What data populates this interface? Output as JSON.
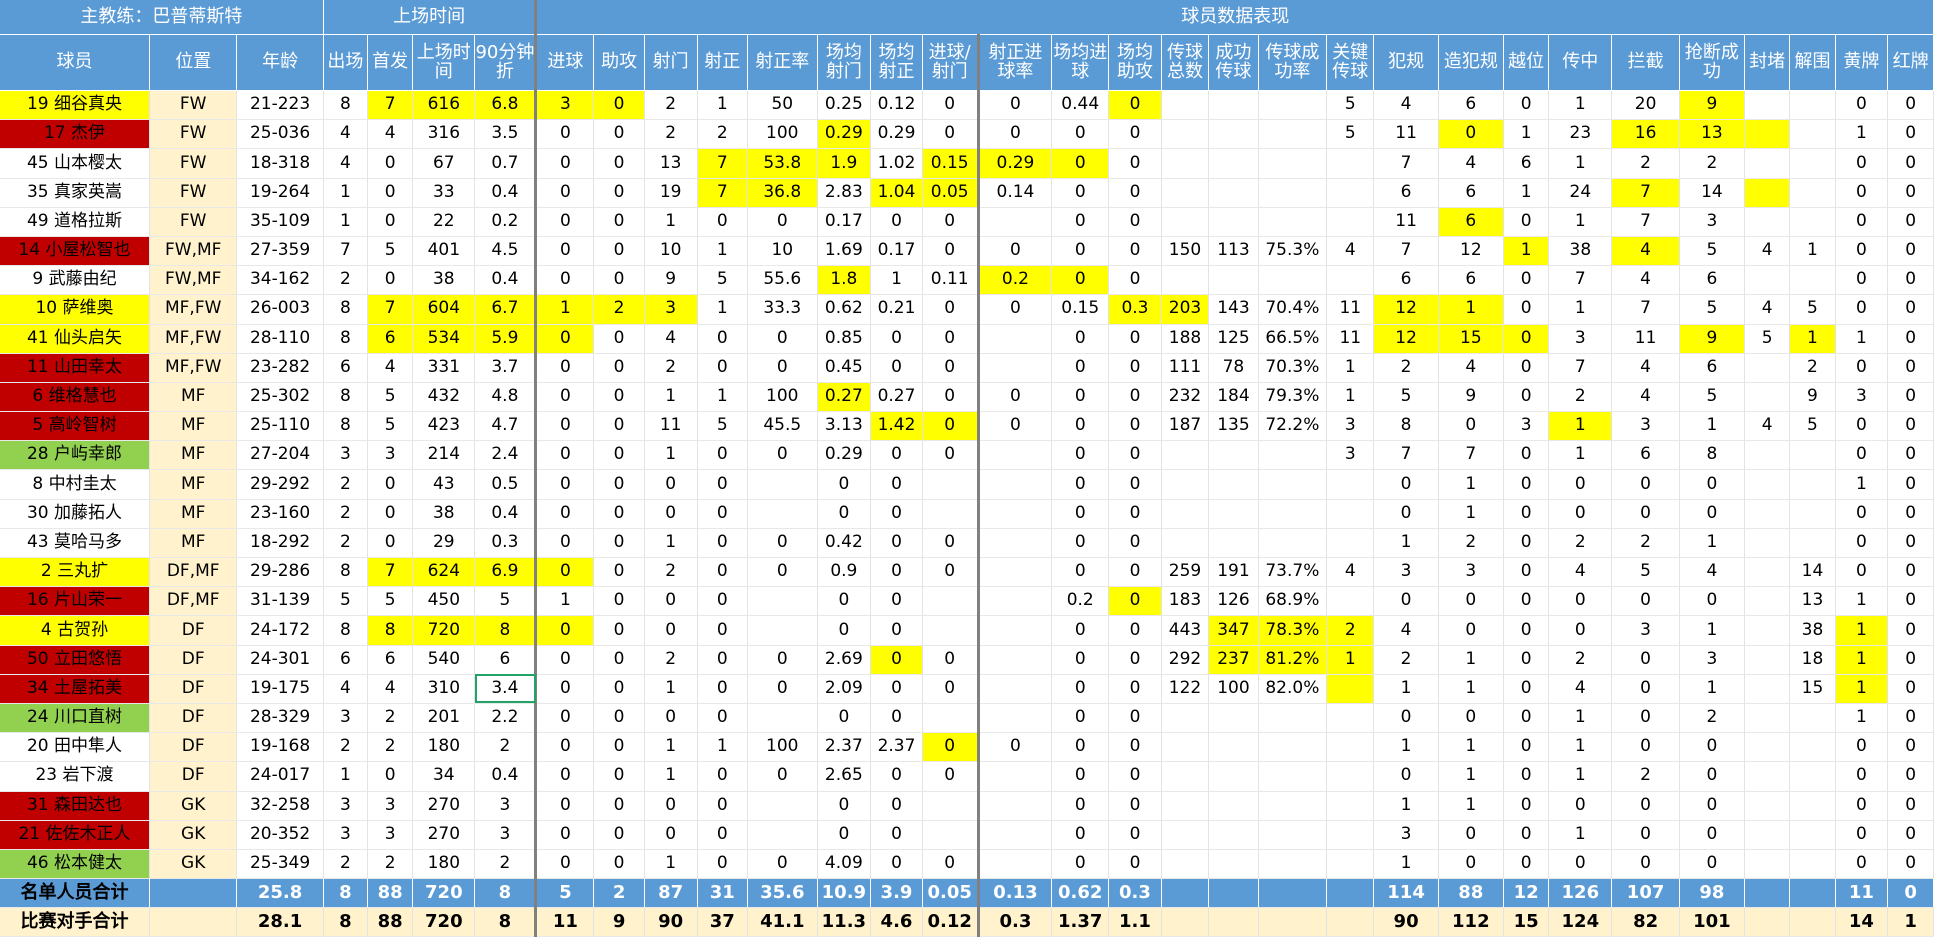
{
  "header_top": {
    "coach": "主教练：巴普蒂斯特",
    "playing_time": "上场时间",
    "stats": "球员数据表现"
  },
  "columns": [
    "球员",
    "位置",
    "年龄",
    "出场",
    "首发",
    "上场时间",
    "90分钟折",
    "进球",
    "助攻",
    "射门",
    "射正",
    "射正率",
    "场均射门",
    "场均射正",
    "进球/射门",
    "射正进球率",
    "场均进球",
    "场均助攻",
    "传球总数",
    "成功传球",
    "传球成功率",
    "关键传球",
    "犯规",
    "造犯规",
    "越位",
    "传中",
    "拦截",
    "抢断成功",
    "封堵",
    "解围",
    "黄牌",
    "红牌"
  ],
  "colors": {
    "header": "#5b9bd5",
    "highlight": "#ffff00",
    "name_red": "#c00000",
    "name_green": "#92d050",
    "position_bg": "#fff2cc"
  },
  "rows": [
    {
      "name": "19 细谷真央",
      "nc": "y",
      "v": [
        "FW",
        "21-223",
        "8",
        "7",
        "616",
        "6.8",
        "3",
        "0",
        "2",
        "1",
        "50",
        "0.25",
        "0.12",
        "0",
        "0",
        "0.44",
        "0",
        "",
        "",
        "",
        "5",
        "4",
        "6",
        "0",
        "1",
        "20",
        "9",
        "",
        "",
        "0",
        "0"
      ],
      "hl": [
        3,
        4,
        5,
        6,
        7,
        16,
        26
      ]
    },
    {
      "name": "17 杰伊",
      "nc": "r",
      "v": [
        "FW",
        "25-036",
        "4",
        "4",
        "316",
        "3.5",
        "0",
        "0",
        "2",
        "2",
        "100",
        "0.29",
        "0.29",
        "0",
        "0",
        "0",
        "0",
        "",
        "",
        "",
        "5",
        "11",
        "0",
        "1",
        "23",
        "16",
        "13",
        "",
        "",
        "1",
        "0"
      ],
      "hl": [
        11,
        22,
        25,
        26,
        27
      ]
    },
    {
      "name": "45 山本樱太",
      "nc": "",
      "v": [
        "FW",
        "18-318",
        "4",
        "0",
        "67",
        "0.7",
        "0",
        "0",
        "13",
        "7",
        "53.8",
        "1.9",
        "1.02",
        "0.15",
        "0.29",
        "0",
        "0",
        "",
        "",
        "",
        "",
        "7",
        "4",
        "6",
        "1",
        "2",
        "2",
        "",
        "",
        "0",
        "0"
      ],
      "hl": [
        9,
        10,
        11,
        13,
        14,
        15
      ]
    },
    {
      "name": "35 真家英嵩",
      "nc": "",
      "v": [
        "FW",
        "19-264",
        "1",
        "0",
        "33",
        "0.4",
        "0",
        "0",
        "19",
        "7",
        "36.8",
        "2.83",
        "1.04",
        "0.05",
        "0.14",
        "0",
        "0",
        "",
        "",
        "",
        "",
        "6",
        "6",
        "1",
        "24",
        "7",
        "14",
        "",
        "",
        "0",
        "0"
      ],
      "hl": [
        9,
        10,
        12,
        13,
        25,
        27
      ]
    },
    {
      "name": "49 道格拉斯",
      "nc": "",
      "v": [
        "FW",
        "35-109",
        "1",
        "0",
        "22",
        "0.2",
        "0",
        "0",
        "1",
        "0",
        "0",
        "0.17",
        "0",
        "0",
        "",
        "0",
        "0",
        "",
        "",
        "",
        "",
        "11",
        "6",
        "0",
        "1",
        "7",
        "3",
        "",
        "",
        "0",
        "0"
      ],
      "hl": [
        22
      ]
    },
    {
      "name": "14 小屋松智也",
      "nc": "r",
      "v": [
        "FW,MF",
        "27-359",
        "7",
        "5",
        "401",
        "4.5",
        "0",
        "0",
        "10",
        "1",
        "10",
        "1.69",
        "0.17",
        "0",
        "0",
        "0",
        "0",
        "150",
        "113",
        "75.3%",
        "4",
        "7",
        "12",
        "1",
        "38",
        "4",
        "5",
        "4",
        "1",
        "0",
        "0"
      ],
      "hl": [
        23,
        25
      ]
    },
    {
      "name": "9 武藤由纪",
      "nc": "",
      "v": [
        "FW,MF",
        "34-162",
        "2",
        "0",
        "38",
        "0.4",
        "0",
        "0",
        "9",
        "5",
        "55.6",
        "1.8",
        "1",
        "0.11",
        "0.2",
        "0",
        "0",
        "",
        "",
        "",
        "",
        "6",
        "6",
        "0",
        "7",
        "4",
        "6",
        "",
        "",
        "0",
        "0"
      ],
      "hl": [
        11,
        14,
        15
      ]
    },
    {
      "name": "10 萨维奥",
      "nc": "y",
      "v": [
        "MF,FW",
        "26-003",
        "8",
        "7",
        "604",
        "6.7",
        "1",
        "2",
        "3",
        "1",
        "33.3",
        "0.62",
        "0.21",
        "0",
        "0",
        "0.15",
        "0.3",
        "203",
        "143",
        "70.4%",
        "11",
        "12",
        "1",
        "0",
        "1",
        "7",
        "5",
        "4",
        "5",
        "0",
        "0"
      ],
      "hl": [
        3,
        4,
        5,
        6,
        7,
        8,
        16,
        17,
        21,
        22
      ]
    },
    {
      "name": "41 仙头启矢",
      "nc": "y",
      "v": [
        "MF,FW",
        "28-110",
        "8",
        "6",
        "534",
        "5.9",
        "0",
        "0",
        "4",
        "0",
        "0",
        "0.85",
        "0",
        "0",
        "",
        "0",
        "0",
        "188",
        "125",
        "66.5%",
        "11",
        "12",
        "15",
        "0",
        "3",
        "11",
        "9",
        "5",
        "1",
        "1",
        "0"
      ],
      "hl": [
        3,
        4,
        5,
        6,
        21,
        22,
        23,
        26,
        28
      ]
    },
    {
      "name": "11 山田幸太",
      "nc": "r",
      "v": [
        "MF,FW",
        "23-282",
        "6",
        "4",
        "331",
        "3.7",
        "0",
        "0",
        "2",
        "0",
        "0",
        "0.45",
        "0",
        "0",
        "",
        "0",
        "0",
        "111",
        "78",
        "70.3%",
        "1",
        "2",
        "4",
        "0",
        "7",
        "4",
        "6",
        "",
        "2",
        "0",
        "0"
      ],
      "hl": []
    },
    {
      "name": "6 维格慧也",
      "nc": "r",
      "v": [
        "MF",
        "25-302",
        "8",
        "5",
        "432",
        "4.8",
        "0",
        "0",
        "1",
        "1",
        "100",
        "0.27",
        "0.27",
        "0",
        "0",
        "0",
        "0",
        "232",
        "184",
        "79.3%",
        "1",
        "5",
        "9",
        "0",
        "2",
        "4",
        "5",
        "",
        "9",
        "3",
        "0"
      ],
      "hl": [
        11
      ]
    },
    {
      "name": "5 高岭智树",
      "nc": "r",
      "v": [
        "MF",
        "25-110",
        "8",
        "5",
        "423",
        "4.7",
        "0",
        "0",
        "11",
        "5",
        "45.5",
        "3.13",
        "1.42",
        "0",
        "0",
        "0",
        "0",
        "187",
        "135",
        "72.2%",
        "3",
        "8",
        "0",
        "3",
        "1",
        "3",
        "1",
        "4",
        "5",
        "0",
        "0"
      ],
      "hl": [
        12,
        13,
        24
      ]
    },
    {
      "name": "28 户屿幸郎",
      "nc": "g",
      "v": [
        "MF",
        "27-204",
        "3",
        "3",
        "214",
        "2.4",
        "0",
        "0",
        "1",
        "0",
        "0",
        "0.29",
        "0",
        "0",
        "",
        "0",
        "0",
        "",
        "",
        "",
        "3",
        "7",
        "7",
        "0",
        "1",
        "6",
        "8",
        "",
        "",
        "0",
        "0"
      ],
      "hl": []
    },
    {
      "name": "8 中村圭太",
      "nc": "",
      "v": [
        "MF",
        "29-292",
        "2",
        "0",
        "43",
        "0.5",
        "0",
        "0",
        "0",
        "0",
        "",
        "0",
        "0",
        "",
        "",
        "0",
        "0",
        "",
        "",
        "",
        "",
        "0",
        "1",
        "0",
        "0",
        "0",
        "0",
        "",
        "",
        "1",
        "0"
      ],
      "hl": []
    },
    {
      "name": "30 加藤拓人",
      "nc": "",
      "v": [
        "MF",
        "23-160",
        "2",
        "0",
        "38",
        "0.4",
        "0",
        "0",
        "0",
        "0",
        "",
        "0",
        "0",
        "",
        "",
        "0",
        "0",
        "",
        "",
        "",
        "",
        "0",
        "1",
        "0",
        "0",
        "0",
        "0",
        "",
        "",
        "0",
        "0"
      ],
      "hl": []
    },
    {
      "name": "43 莫哈马多",
      "nc": "",
      "v": [
        "MF",
        "18-292",
        "2",
        "0",
        "29",
        "0.3",
        "0",
        "0",
        "1",
        "0",
        "0",
        "0.42",
        "0",
        "0",
        "",
        "0",
        "0",
        "",
        "",
        "",
        "",
        "1",
        "2",
        "0",
        "2",
        "2",
        "1",
        "",
        "",
        "0",
        "0"
      ],
      "hl": []
    },
    {
      "name": "2 三丸扩",
      "nc": "y",
      "v": [
        "DF,MF",
        "29-286",
        "8",
        "7",
        "624",
        "6.9",
        "0",
        "0",
        "2",
        "0",
        "0",
        "0.9",
        "0",
        "0",
        "",
        "0",
        "0",
        "259",
        "191",
        "73.7%",
        "4",
        "3",
        "3",
        "0",
        "4",
        "5",
        "4",
        "",
        "14",
        "0",
        "0"
      ],
      "hl": [
        3,
        4,
        5,
        6
      ]
    },
    {
      "name": "16 片山荣一",
      "nc": "r",
      "v": [
        "DF,MF",
        "31-139",
        "5",
        "5",
        "450",
        "5",
        "1",
        "0",
        "0",
        "0",
        "",
        "0",
        "0",
        "",
        "",
        "0.2",
        "0",
        "183",
        "126",
        "68.9%",
        "",
        "0",
        "0",
        "0",
        "0",
        "0",
        "0",
        "",
        "13",
        "1",
        "0"
      ],
      "hl": [
        16
      ]
    },
    {
      "name": "4 古贺孙",
      "nc": "y",
      "v": [
        "DF",
        "24-172",
        "8",
        "8",
        "720",
        "8",
        "0",
        "0",
        "0",
        "0",
        "",
        "0",
        "0",
        "",
        "",
        "0",
        "0",
        "443",
        "347",
        "78.3%",
        "2",
        "4",
        "0",
        "0",
        "0",
        "3",
        "1",
        "",
        "38",
        "1",
        "0"
      ],
      "hl": [
        3,
        4,
        5,
        6,
        18,
        19,
        20,
        29
      ]
    },
    {
      "name": "50 立田悠悟",
      "nc": "r",
      "v": [
        "DF",
        "24-301",
        "6",
        "6",
        "540",
        "6",
        "0",
        "0",
        "2",
        "0",
        "0",
        "2.69",
        "0",
        "0",
        "",
        "0",
        "0",
        "292",
        "237",
        "81.2%",
        "1",
        "2",
        "1",
        "0",
        "2",
        "0",
        "3",
        "",
        "18",
        "1",
        "0"
      ],
      "hl": [
        12,
        18,
        19,
        20,
        29
      ]
    },
    {
      "name": "34 土屋拓美",
      "nc": "r",
      "v": [
        "DF",
        "19-175",
        "4",
        "4",
        "310",
        "3.4",
        "0",
        "0",
        "1",
        "0",
        "0",
        "2.09",
        "0",
        "0",
        "",
        "0",
        "0",
        "122",
        "100",
        "82.0%",
        "",
        "1",
        "1",
        "0",
        "4",
        "0",
        "1",
        "",
        "15",
        "1",
        "0"
      ],
      "hl": [
        20,
        29
      ],
      "sel": 5
    },
    {
      "name": "24 川口直树",
      "nc": "g",
      "v": [
        "DF",
        "28-329",
        "3",
        "2",
        "201",
        "2.2",
        "0",
        "0",
        "0",
        "0",
        "",
        "0",
        "0",
        "",
        "",
        "0",
        "0",
        "",
        "",
        "",
        "",
        "0",
        "0",
        "0",
        "1",
        "0",
        "2",
        "",
        "",
        "1",
        "0"
      ],
      "hl": []
    },
    {
      "name": "20 田中隼人",
      "nc": "",
      "v": [
        "DF",
        "19-168",
        "2",
        "2",
        "180",
        "2",
        "0",
        "0",
        "1",
        "1",
        "100",
        "2.37",
        "2.37",
        "0",
        "0",
        "0",
        "0",
        "",
        "",
        "",
        "",
        "1",
        "1",
        "0",
        "1",
        "0",
        "0",
        "",
        "",
        "0",
        "0"
      ],
      "hl": [
        13
      ]
    },
    {
      "name": "23 岩下渡",
      "nc": "",
      "v": [
        "DF",
        "24-017",
        "1",
        "0",
        "34",
        "0.4",
        "0",
        "0",
        "1",
        "0",
        "0",
        "2.65",
        "0",
        "0",
        "",
        "0",
        "0",
        "",
        "",
        "",
        "",
        "0",
        "1",
        "0",
        "1",
        "2",
        "0",
        "",
        "",
        "0",
        "0"
      ],
      "hl": []
    },
    {
      "name": "31 森田达也",
      "nc": "r",
      "v": [
        "GK",
        "32-258",
        "3",
        "3",
        "270",
        "3",
        "0",
        "0",
        "0",
        "0",
        "",
        "0",
        "0",
        "",
        "",
        "0",
        "0",
        "",
        "",
        "",
        "",
        "1",
        "1",
        "0",
        "0",
        "0",
        "0",
        "",
        "",
        "0",
        "0"
      ],
      "hl": []
    },
    {
      "name": "21 佐佐木正人",
      "nc": "r",
      "v": [
        "GK",
        "20-352",
        "3",
        "3",
        "270",
        "3",
        "0",
        "0",
        "0",
        "0",
        "",
        "0",
        "0",
        "",
        "",
        "0",
        "0",
        "",
        "",
        "",
        "",
        "3",
        "0",
        "0",
        "1",
        "0",
        "0",
        "",
        "",
        "0",
        "0"
      ],
      "hl": []
    },
    {
      "name": "46 松本健太",
      "nc": "g",
      "v": [
        "GK",
        "25-349",
        "2",
        "2",
        "180",
        "2",
        "0",
        "0",
        "1",
        "0",
        "0",
        "4.09",
        "0",
        "0",
        "",
        "0",
        "0",
        "",
        "",
        "",
        "",
        "1",
        "0",
        "0",
        "0",
        "0",
        "0",
        "",
        "",
        "0",
        "0"
      ],
      "hl": []
    }
  ],
  "totals": {
    "label": "名单人员合计",
    "v": [
      "",
      "25.8",
      "8",
      "88",
      "720",
      "8",
      "5",
      "2",
      "87",
      "31",
      "35.6",
      "10.9",
      "3.9",
      "0.05",
      "0.13",
      "0.62",
      "0.3",
      "",
      "",
      "",
      "",
      "114",
      "88",
      "12",
      "126",
      "107",
      "98",
      "",
      "",
      "11",
      "0"
    ]
  },
  "opponents": {
    "label": "比赛对手合计",
    "v": [
      "",
      "28.1",
      "8",
      "88",
      "720",
      "8",
      "11",
      "9",
      "90",
      "37",
      "41.1",
      "11.3",
      "4.6",
      "0.12",
      "0.3",
      "1.37",
      "1.1",
      "",
      "",
      "",
      "",
      "90",
      "112",
      "15",
      "124",
      "82",
      "101",
      "",
      "",
      "14",
      "1"
    ]
  }
}
